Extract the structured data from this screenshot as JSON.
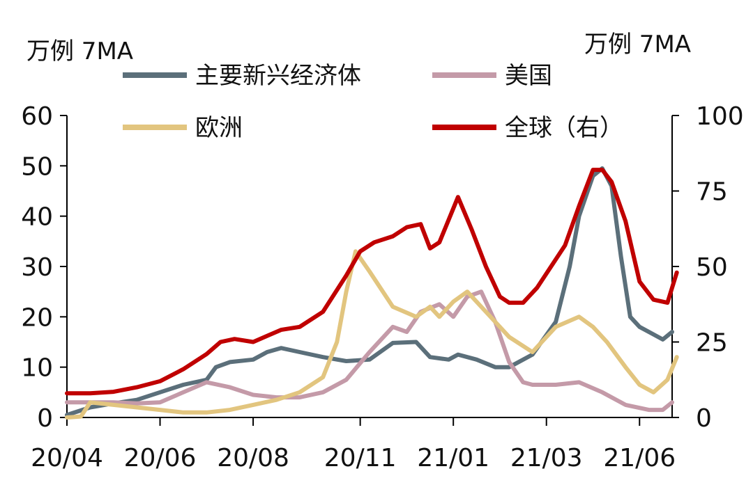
{
  "chart_data": {
    "type": "line",
    "left_axis_unit": "万例 7MA",
    "right_axis_unit": "万例 7MA",
    "x_tick_labels": [
      "20/04",
      "20/06",
      "20/08",
      "20/11",
      "21/01",
      "21/03",
      "21/06"
    ],
    "x_tick_months": [
      0,
      2,
      4,
      6.3,
      8.3,
      10.3,
      12.3
    ],
    "x_range": [
      0,
      13
    ],
    "left_ylim": [
      0,
      60
    ],
    "left_yticks": [
      "0",
      "10",
      "20",
      "30",
      "40",
      "50",
      "60"
    ],
    "right_ylim": [
      0,
      100
    ],
    "right_yticks": [
      "0",
      "25",
      "50",
      "75",
      "100"
    ],
    "grid": false,
    "legend_position": "top",
    "series": [
      {
        "name": "主要新兴经济体",
        "axis": "left",
        "color": "#5b6f7a",
        "points": [
          [
            0,
            0.5
          ],
          [
            0.5,
            2
          ],
          [
            1,
            2.8
          ],
          [
            1.5,
            3.5
          ],
          [
            2,
            5
          ],
          [
            2.5,
            6.5
          ],
          [
            3,
            7.5
          ],
          [
            3.2,
            10
          ],
          [
            3.5,
            11
          ],
          [
            4,
            11.5
          ],
          [
            4.3,
            13
          ],
          [
            4.6,
            13.8
          ],
          [
            5,
            13
          ],
          [
            5.5,
            12
          ],
          [
            6,
            11.2
          ],
          [
            6.5,
            11.5
          ],
          [
            7,
            14.8
          ],
          [
            7.5,
            15
          ],
          [
            7.8,
            12
          ],
          [
            8.2,
            11.5
          ],
          [
            8.4,
            12.5
          ],
          [
            8.8,
            11.5
          ],
          [
            9.2,
            10
          ],
          [
            9.5,
            10
          ],
          [
            10,
            12.5
          ],
          [
            10.5,
            19
          ],
          [
            10.8,
            30
          ],
          [
            11,
            40
          ],
          [
            11.3,
            48
          ],
          [
            11.5,
            49.5
          ],
          [
            11.7,
            46
          ],
          [
            11.9,
            32
          ],
          [
            12.1,
            20
          ],
          [
            12.3,
            18
          ],
          [
            12.6,
            16.5
          ],
          [
            12.8,
            15.5
          ],
          [
            13,
            17
          ]
        ]
      },
      {
        "name": "美国",
        "axis": "left",
        "color": "#c49aa8",
        "points": [
          [
            0,
            3
          ],
          [
            0.5,
            3
          ],
          [
            1,
            3
          ],
          [
            1.5,
            2.8
          ],
          [
            2,
            3
          ],
          [
            2.5,
            5
          ],
          [
            3,
            7
          ],
          [
            3.5,
            6
          ],
          [
            4,
            4.5
          ],
          [
            4.5,
            4
          ],
          [
            5,
            4
          ],
          [
            5.5,
            5
          ],
          [
            6,
            7.5
          ],
          [
            6.5,
            13
          ],
          [
            7,
            18
          ],
          [
            7.3,
            17
          ],
          [
            7.6,
            21
          ],
          [
            8,
            22.5
          ],
          [
            8.3,
            20
          ],
          [
            8.6,
            24
          ],
          [
            8.9,
            25
          ],
          [
            9.2,
            19
          ],
          [
            9.5,
            11
          ],
          [
            9.8,
            7
          ],
          [
            10,
            6.5
          ],
          [
            10.5,
            6.5
          ],
          [
            11,
            7
          ],
          [
            11.5,
            5
          ],
          [
            12,
            2.5
          ],
          [
            12.5,
            1.5
          ],
          [
            12.8,
            1.5
          ],
          [
            13,
            3
          ]
        ]
      },
      {
        "name": "欧洲",
        "axis": "left",
        "color": "#e2c57f",
        "points": [
          [
            0,
            0
          ],
          [
            0.3,
            0.2
          ],
          [
            0.5,
            3
          ],
          [
            1,
            2.5
          ],
          [
            1.5,
            2
          ],
          [
            2,
            1.5
          ],
          [
            2.5,
            1
          ],
          [
            3,
            1
          ],
          [
            3.5,
            1.5
          ],
          [
            4,
            2.5
          ],
          [
            4.5,
            3.5
          ],
          [
            5,
            5
          ],
          [
            5.5,
            8
          ],
          [
            5.8,
            15
          ],
          [
            6,
            25
          ],
          [
            6.2,
            33
          ],
          [
            6.5,
            29
          ],
          [
            7,
            22
          ],
          [
            7.5,
            20
          ],
          [
            7.8,
            22
          ],
          [
            8,
            20
          ],
          [
            8.3,
            23
          ],
          [
            8.6,
            25
          ],
          [
            9,
            21
          ],
          [
            9.5,
            16
          ],
          [
            10,
            13
          ],
          [
            10.5,
            18
          ],
          [
            11,
            20
          ],
          [
            11.3,
            18
          ],
          [
            11.6,
            15
          ],
          [
            12,
            10
          ],
          [
            12.3,
            6.5
          ],
          [
            12.6,
            5
          ],
          [
            12.9,
            7.5
          ],
          [
            13.1,
            12
          ]
        ]
      },
      {
        "name": "全球（右）",
        "axis": "right",
        "color": "#c00000",
        "points": [
          [
            0,
            8
          ],
          [
            0.5,
            8
          ],
          [
            1,
            8.5
          ],
          [
            1.5,
            10
          ],
          [
            2,
            12
          ],
          [
            2.5,
            16
          ],
          [
            3,
            21
          ],
          [
            3.3,
            25
          ],
          [
            3.6,
            26
          ],
          [
            4,
            25
          ],
          [
            4.3,
            27
          ],
          [
            4.6,
            29
          ],
          [
            5,
            30
          ],
          [
            5.5,
            35
          ],
          [
            6,
            47
          ],
          [
            6.3,
            55
          ],
          [
            6.6,
            58
          ],
          [
            7,
            60
          ],
          [
            7.3,
            63
          ],
          [
            7.6,
            64
          ],
          [
            7.8,
            56
          ],
          [
            8,
            58
          ],
          [
            8.4,
            73
          ],
          [
            8.7,
            62
          ],
          [
            9,
            50
          ],
          [
            9.3,
            40
          ],
          [
            9.5,
            38
          ],
          [
            9.8,
            38
          ],
          [
            10.1,
            43
          ],
          [
            10.4,
            50
          ],
          [
            10.7,
            57
          ],
          [
            11,
            70
          ],
          [
            11.3,
            82
          ],
          [
            11.5,
            82
          ],
          [
            11.7,
            78
          ],
          [
            12,
            65
          ],
          [
            12.3,
            45
          ],
          [
            12.6,
            39
          ],
          [
            12.9,
            38
          ],
          [
            13.1,
            48
          ]
        ]
      }
    ]
  }
}
